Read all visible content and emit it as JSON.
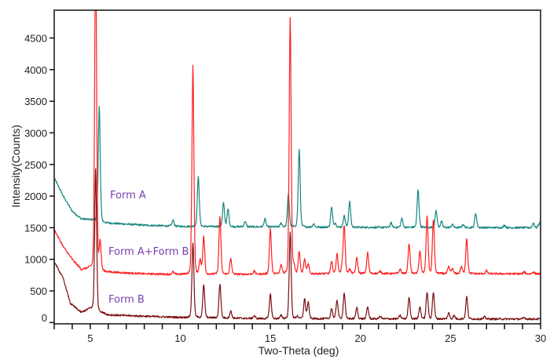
{
  "chart_data": {
    "type": "line",
    "title": "",
    "xlabel": "Two-Theta (deg)",
    "ylabel": "Intensity(Counts)",
    "xlim": [
      3,
      30
    ],
    "ylim": [
      -20,
      4940
    ],
    "xticks": [
      5,
      10,
      15,
      20,
      25,
      30
    ],
    "xtick_labels": [
      "5",
      "10",
      "15",
      "20",
      "25",
      "30"
    ],
    "yticks": [
      0,
      500,
      1000,
      1500,
      2000,
      2500,
      3000,
      3500,
      4000,
      4500
    ],
    "ytick_labels": [
      "0",
      "500",
      "1000",
      "1500",
      "2000",
      "2500",
      "3000",
      "3500",
      "4000",
      "4500"
    ],
    "grid": false,
    "legend": "inline labels",
    "series": [
      {
        "name": "Form A",
        "color": "#17867f",
        "baseline": [
          [
            3,
            2290
          ],
          [
            3.5,
            2000
          ],
          [
            4,
            1760
          ],
          [
            4.5,
            1640
          ],
          [
            5.2,
            1620
          ],
          [
            5.8,
            1575
          ],
          [
            8,
            1540
          ],
          [
            10,
            1520
          ],
          [
            15,
            1512
          ],
          [
            20,
            1505
          ],
          [
            29.8,
            1500
          ],
          [
            30,
            1600
          ]
        ],
        "peaks": [
          [
            5.5,
            3420
          ],
          [
            9.6,
            1620
          ],
          [
            11.0,
            2300
          ],
          [
            12.4,
            1890
          ],
          [
            12.65,
            1790
          ],
          [
            13.6,
            1600
          ],
          [
            14.7,
            1636
          ],
          [
            15.6,
            1570
          ],
          [
            16.0,
            2026
          ],
          [
            16.6,
            2727
          ],
          [
            17.4,
            1560
          ],
          [
            18.4,
            1820
          ],
          [
            18.6,
            1570
          ],
          [
            19.1,
            1685
          ],
          [
            19.4,
            1915
          ],
          [
            21.7,
            1575
          ],
          [
            22.3,
            1645
          ],
          [
            23.2,
            2096
          ],
          [
            24.2,
            1771
          ],
          [
            24.5,
            1595
          ],
          [
            25.1,
            1550
          ],
          [
            25.7,
            1550
          ],
          [
            26.4,
            1730
          ],
          [
            28.0,
            1540
          ],
          [
            29.6,
            1575
          ]
        ]
      },
      {
        "name": "Form A+Form B",
        "color": "#ff1f1f",
        "baseline": [
          [
            3,
            1470
          ],
          [
            3.5,
            1200
          ],
          [
            4,
            1000
          ],
          [
            4.5,
            836
          ],
          [
            5,
            860
          ],
          [
            5.8,
            800
          ],
          [
            8,
            770
          ],
          [
            10,
            760
          ],
          [
            15,
            765
          ],
          [
            20,
            775
          ],
          [
            30,
            770
          ]
        ],
        "peaks": [
          [
            5.3,
            6000
          ],
          [
            5.55,
            1267
          ],
          [
            9.6,
            800
          ],
          [
            10.7,
            4055
          ],
          [
            11.1,
            990
          ],
          [
            11.3,
            1350
          ],
          [
            12.2,
            1680
          ],
          [
            12.8,
            1005
          ],
          [
            14.1,
            810
          ],
          [
            15.0,
            1485
          ],
          [
            15.6,
            900
          ],
          [
            16.1,
            4830
          ],
          [
            16.3,
            900
          ],
          [
            16.6,
            1103
          ],
          [
            16.9,
            993
          ],
          [
            17.1,
            920
          ],
          [
            18.4,
            956
          ],
          [
            18.7,
            1082
          ],
          [
            19.0,
            900
          ],
          [
            19.1,
            1513
          ],
          [
            19.4,
            840
          ],
          [
            19.8,
            1021
          ],
          [
            20.4,
            1103
          ],
          [
            21.1,
            810
          ],
          [
            22.2,
            840
          ],
          [
            22.7,
            1251
          ],
          [
            23.3,
            1128
          ],
          [
            23.7,
            1681
          ],
          [
            24.05,
            1636
          ],
          [
            24.9,
            880
          ],
          [
            25.1,
            850
          ],
          [
            25.6,
            880
          ],
          [
            25.9,
            1328
          ],
          [
            27.0,
            820
          ],
          [
            29.1,
            800
          ],
          [
            29.6,
            800
          ]
        ]
      },
      {
        "name": "Form B",
        "color": "#7a0f12",
        "baseline": [
          [
            3,
            960
          ],
          [
            3.5,
            697
          ],
          [
            3.9,
            300
          ],
          [
            4.5,
            160
          ],
          [
            5,
            221
          ],
          [
            6,
            120
          ],
          [
            10,
            80
          ],
          [
            15,
            60
          ],
          [
            20,
            58
          ],
          [
            30,
            55
          ]
        ],
        "peaks": [
          [
            5.3,
            2435
          ],
          [
            10.7,
            1267
          ],
          [
            11.3,
            590
          ],
          [
            12.2,
            611
          ],
          [
            12.8,
            180
          ],
          [
            14.1,
            107
          ],
          [
            15.0,
            448
          ],
          [
            15.6,
            110
          ],
          [
            16.1,
            1432
          ],
          [
            16.5,
            100
          ],
          [
            16.9,
            374
          ],
          [
            17.1,
            312
          ],
          [
            18.4,
            221
          ],
          [
            18.7,
            357
          ],
          [
            19.1,
            468
          ],
          [
            19.8,
            234
          ],
          [
            20.4,
            250
          ],
          [
            21.1,
            100
          ],
          [
            22.2,
            110
          ],
          [
            22.7,
            398
          ],
          [
            23.3,
            242
          ],
          [
            23.7,
            480
          ],
          [
            24.05,
            480
          ],
          [
            24.9,
            150
          ],
          [
            25.2,
            110
          ],
          [
            25.9,
            406
          ],
          [
            26.9,
            90
          ],
          [
            29.1,
            80
          ]
        ]
      }
    ]
  }
}
